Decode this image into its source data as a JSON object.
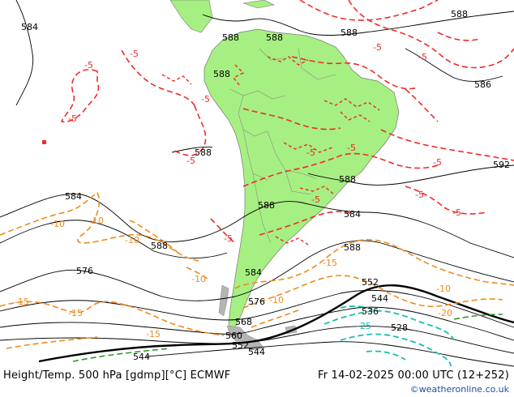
{
  "footer": {
    "left_label": "Height/Temp. 500 hPa [gdmp][°C] ECMWF",
    "right_label": "Fr 14-02-2025 00:00 UTC (12+252)",
    "credit": "©weatheronline.co.uk"
  },
  "colors": {
    "land": "#a6ef82",
    "sea": "#ffffff",
    "height_contour": "#000000",
    "temp_warm": "#ee2b2b",
    "temp_mid": "#f08a1d",
    "temp_cold": "#16c0b0",
    "temp_colder": "#2c9a2c"
  },
  "height_labels": [
    "584",
    "588",
    "588",
    "588",
    "588",
    "586",
    "588",
    "588",
    "588",
    "592",
    "584",
    "588",
    "584",
    "588",
    "584",
    "588",
    "576",
    "552",
    "544",
    "536",
    "528",
    "568",
    "560",
    "552",
    "544",
    "576",
    "544"
  ],
  "temp_labels": {
    "red": [
      "-5",
      "-5",
      "-5",
      "-5",
      "-5",
      "-5",
      "-5",
      "-5",
      "-5",
      "-5",
      "-5",
      "-5",
      "-5",
      "-5"
    ],
    "orange": [
      "-10",
      "-10",
      "-10",
      "-10",
      "-10",
      "-15",
      "-15",
      "-10",
      "-15",
      "-15",
      "-20"
    ],
    "cyan": [
      "-25"
    ]
  }
}
